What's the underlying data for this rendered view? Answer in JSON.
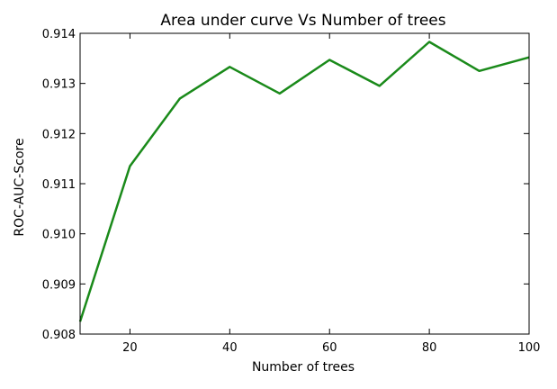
{
  "chart_data": {
    "type": "line",
    "title": "Area under curve Vs Number of trees",
    "xlabel": "Number of trees",
    "ylabel": "ROC-AUC-Score",
    "xlim": [
      10,
      100
    ],
    "ylim": [
      0.908,
      0.914
    ],
    "grid": false,
    "x_ticks": [
      20,
      40,
      60,
      80,
      100
    ],
    "x_tick_labels": [
      "20",
      "40",
      "60",
      "80",
      "100"
    ],
    "y_ticks": [
      0.908,
      0.909,
      0.91,
      0.911,
      0.912,
      0.913,
      0.914
    ],
    "y_tick_labels": [
      "0.908",
      "0.909",
      "0.910",
      "0.911",
      "0.912",
      "0.913",
      "0.914"
    ],
    "series": [
      {
        "color": "#1a8a1a",
        "x": [
          10,
          20,
          30,
          40,
          50,
          60,
          70,
          80,
          90,
          100
        ],
        "y": [
          0.90825,
          0.91135,
          0.9127,
          0.91333,
          0.9128,
          0.91347,
          0.91295,
          0.91383,
          0.91325,
          0.91352
        ]
      }
    ]
  }
}
